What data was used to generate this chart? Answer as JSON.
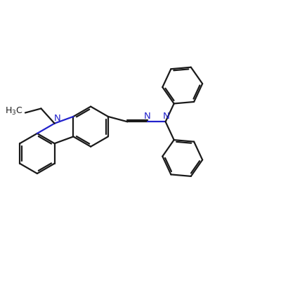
{
  "background": "#ffffff",
  "bond_color": "#1a1a1a",
  "N_color": "#2222cc",
  "line_width": 1.6,
  "font_size": 9.5,
  "figsize": [
    4.0,
    4.0
  ],
  "dpi": 100,
  "xlim": [
    0,
    10
  ],
  "ylim": [
    0,
    10
  ]
}
